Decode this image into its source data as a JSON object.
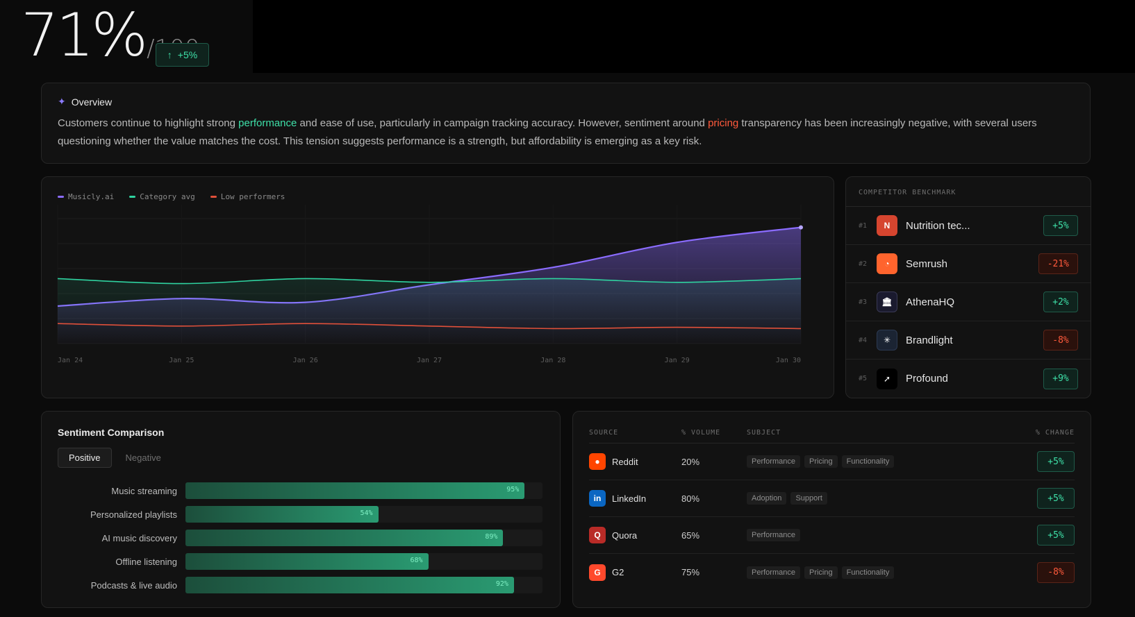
{
  "score": {
    "value": "71%",
    "denominator": "/100",
    "delta": "+5%",
    "delta_icon": "arrow-up-icon"
  },
  "overview": {
    "title": "Overview",
    "icon": "sparkle-icon",
    "text_1": "Customers continue to highlight strong ",
    "highlight_1": "performance",
    "text_2": " and ease of use, particularly in campaign tracking accuracy. However, sentiment around ",
    "highlight_2": "pricing",
    "text_3": " transparency has been increasingly negative, with several users questioning whether the value matches the cost. This tension suggests performance is a strength, but affordability is emerging as a key risk."
  },
  "colors": {
    "accent_purple": "#8b6cff",
    "accent_green": "#2fd3a0",
    "accent_red": "#e0503a",
    "positive": "#3ee0a8",
    "negative": "#ff5a3c"
  },
  "chart_data": {
    "type": "line",
    "x": [
      "Jan 24",
      "Jan 25",
      "Jan 26",
      "Jan 27",
      "Jan 28",
      "Jan 29",
      "Jan 30"
    ],
    "series": [
      {
        "name": "Musicly.ai",
        "color": "#8b6cff",
        "values": [
          30,
          36,
          33,
          47,
          61,
          81,
          93
        ]
      },
      {
        "name": "Category avg",
        "color": "#2fd3a0",
        "values": [
          52,
          48,
          52,
          49,
          52,
          49,
          52
        ]
      },
      {
        "name": "Low performers",
        "color": "#e0503a",
        "values": [
          16,
          14,
          16,
          14,
          12,
          13,
          12
        ]
      }
    ],
    "ylim": [
      0,
      100
    ],
    "grid": true,
    "legend_position": "top-left"
  },
  "benchmark": {
    "title": "COMPETITOR BENCHMARK",
    "rows": [
      {
        "rank": "#1",
        "name": "Nutrition tec...",
        "logo_text": "N",
        "logo_color": "#d6452f",
        "change": "+5%",
        "positive": true
      },
      {
        "rank": "#2",
        "name": "Semrush",
        "logo_text": "",
        "logo_icon": "semrush-icon",
        "logo_color": "#ff642d",
        "change": "-21%",
        "positive": false
      },
      {
        "rank": "#3",
        "name": "AthenaHQ",
        "logo_text": "",
        "logo_icon": "building-icon",
        "logo_color": "#1a1a2e",
        "change": "+2%",
        "positive": true
      },
      {
        "rank": "#4",
        "name": "Brandlight",
        "logo_text": "",
        "logo_icon": "starburst-icon",
        "logo_color": "#1b2433",
        "change": "-8%",
        "positive": false
      },
      {
        "rank": "#5",
        "name": "Profound",
        "logo_text": "",
        "logo_icon": "profound-icon",
        "logo_color": "#000000",
        "change": "+9%",
        "positive": true
      }
    ]
  },
  "sentiment": {
    "title": "Sentiment Comparison",
    "tabs": [
      "Positive",
      "Negative"
    ],
    "active_tab": "Positive",
    "bars": [
      {
        "label": "Music streaming",
        "value": 95,
        "value_label": "95%"
      },
      {
        "label": "Personalized playlists",
        "value": 54,
        "value_label": "54%"
      },
      {
        "label": "AI music discovery",
        "value": 89,
        "value_label": "89%"
      },
      {
        "label": "Offline listening",
        "value": 68,
        "value_label": "68%"
      },
      {
        "label": "Podcasts & live audio",
        "value": 92,
        "value_label": "92%"
      }
    ]
  },
  "sources": {
    "headers": {
      "source": "SOURCE",
      "volume": "% VOLUME",
      "subject": "SUBJECT",
      "change": "% CHANGE"
    },
    "rows": [
      {
        "name": "Reddit",
        "icon": "reddit-icon",
        "logo_color": "#ff4500",
        "volume": "20%",
        "tags": [
          "Performance",
          "Pricing",
          "Functionality"
        ],
        "change": "+5%",
        "positive": true
      },
      {
        "name": "LinkedIn",
        "icon": "linkedin-icon",
        "logo_color": "#0a66c2",
        "volume": "80%",
        "tags": [
          "Adoption",
          "Support"
        ],
        "change": "+5%",
        "positive": true
      },
      {
        "name": "Quora",
        "icon": "quora-icon",
        "logo_color": "#b92b27",
        "volume": "65%",
        "tags": [
          "Performance"
        ],
        "change": "+5%",
        "positive": true
      },
      {
        "name": "G2",
        "icon": "g2-icon",
        "logo_color": "#ff492c",
        "volume": "75%",
        "tags": [
          "Performance",
          "Pricing",
          "Functionality"
        ],
        "change": "-8%",
        "positive": false
      }
    ]
  }
}
